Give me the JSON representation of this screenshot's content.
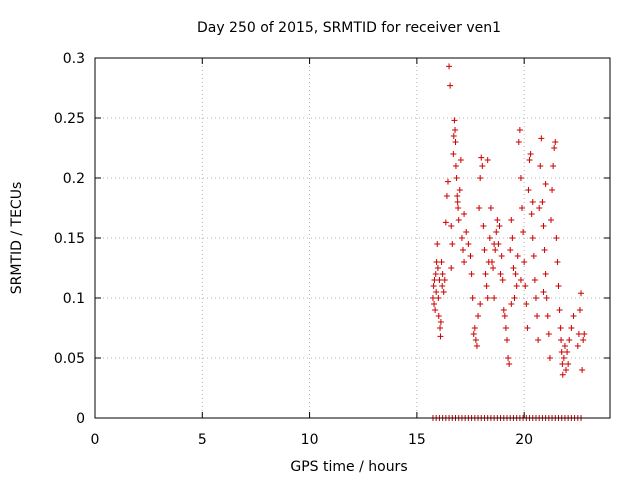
{
  "chart_data": {
    "type": "scatter",
    "title": "Day 250 of 2015, SRMTID for receiver ven1",
    "xlabel": "GPS time / hours",
    "ylabel": "SRMTID / TECUs",
    "xlim": [
      0,
      24
    ],
    "ylim": [
      0,
      0.3
    ],
    "xticks": [
      0,
      5,
      10,
      15,
      20
    ],
    "xtick_labels": [
      "0",
      "5",
      "10",
      "15",
      "20"
    ],
    "yticks": [
      0,
      0.05,
      0.1,
      0.15,
      0.2,
      0.25,
      0.3
    ],
    "ytick_labels": [
      "0",
      "0.05",
      "0.1",
      "0.15",
      "0.2",
      "0.25",
      "0.3"
    ],
    "grid": true,
    "marker": "+",
    "marker_color": "#cc0000",
    "series": [
      {
        "name": "SRMTID",
        "points": [
          [
            15.75,
            0.1
          ],
          [
            15.78,
            0.11
          ],
          [
            15.8,
            0.095
          ],
          [
            15.82,
            0.115
          ],
          [
            15.85,
            0.09
          ],
          [
            15.88,
            0.12
          ],
          [
            15.9,
            0.105
          ],
          [
            15.92,
            0.13
          ],
          [
            15.95,
            0.145
          ],
          [
            15.98,
            0.125
          ],
          [
            16.0,
            0.1
          ],
          [
            16.02,
            0.085
          ],
          [
            16.05,
            0.115
          ],
          [
            16.08,
            0.075
          ],
          [
            16.1,
            0.068
          ],
          [
            16.12,
            0.08
          ],
          [
            16.15,
            0.13
          ],
          [
            16.18,
            0.11
          ],
          [
            16.2,
            0.12
          ],
          [
            16.25,
            0.105
          ],
          [
            16.3,
            0.115
          ],
          [
            16.35,
            0.163
          ],
          [
            16.4,
            0.185
          ],
          [
            16.45,
            0.197
          ],
          [
            16.5,
            0.293
          ],
          [
            16.55,
            0.277
          ],
          [
            16.6,
            0.125
          ],
          [
            16.65,
            0.145
          ],
          [
            16.7,
            0.22
          ],
          [
            16.72,
            0.235
          ],
          [
            16.75,
            0.248
          ],
          [
            16.78,
            0.24
          ],
          [
            16.8,
            0.23
          ],
          [
            16.82,
            0.21
          ],
          [
            16.85,
            0.2
          ],
          [
            16.88,
            0.185
          ],
          [
            16.9,
            0.18
          ],
          [
            16.92,
            0.175
          ],
          [
            16.95,
            0.165
          ],
          [
            17.0,
            0.19
          ],
          [
            17.05,
            0.215
          ],
          [
            17.1,
            0.15
          ],
          [
            17.15,
            0.14
          ],
          [
            17.2,
            0.13
          ],
          [
            17.3,
            0.155
          ],
          [
            17.4,
            0.145
          ],
          [
            17.5,
            0.135
          ],
          [
            17.55,
            0.12
          ],
          [
            17.6,
            0.1
          ],
          [
            17.65,
            0.07
          ],
          [
            17.7,
            0.075
          ],
          [
            17.75,
            0.065
          ],
          [
            17.8,
            0.06
          ],
          [
            17.85,
            0.085
          ],
          [
            17.9,
            0.175
          ],
          [
            17.95,
            0.2
          ],
          [
            18.0,
            0.217
          ],
          [
            18.05,
            0.21
          ],
          [
            18.1,
            0.16
          ],
          [
            18.15,
            0.14
          ],
          [
            18.2,
            0.12
          ],
          [
            18.25,
            0.11
          ],
          [
            18.3,
            0.1
          ],
          [
            18.35,
            0.13
          ],
          [
            18.4,
            0.15
          ],
          [
            18.45,
            0.175
          ],
          [
            18.5,
            0.13
          ],
          [
            18.55,
            0.125
          ],
          [
            18.6,
            0.1
          ],
          [
            18.65,
            0.14
          ],
          [
            18.7,
            0.155
          ],
          [
            18.75,
            0.165
          ],
          [
            18.8,
            0.145
          ],
          [
            18.85,
            0.16
          ],
          [
            18.9,
            0.12
          ],
          [
            18.95,
            0.135
          ],
          [
            19.0,
            0.115
          ],
          [
            19.05,
            0.09
          ],
          [
            19.1,
            0.085
          ],
          [
            19.15,
            0.075
          ],
          [
            19.2,
            0.065
          ],
          [
            19.25,
            0.05
          ],
          [
            19.3,
            0.045
          ],
          [
            19.35,
            0.14
          ],
          [
            19.4,
            0.165
          ],
          [
            19.45,
            0.15
          ],
          [
            19.5,
            0.125
          ],
          [
            19.55,
            0.1
          ],
          [
            19.6,
            0.12
          ],
          [
            19.65,
            0.11
          ],
          [
            19.7,
            0.135
          ],
          [
            19.75,
            0.23
          ],
          [
            19.8,
            0.24
          ],
          [
            19.85,
            0.2
          ],
          [
            19.9,
            0.175
          ],
          [
            19.95,
            0.155
          ],
          [
            20.0,
            0.13
          ],
          [
            20.05,
            0.11
          ],
          [
            20.1,
            0.095
          ],
          [
            20.15,
            0.075
          ],
          [
            20.2,
            0.19
          ],
          [
            20.25,
            0.215
          ],
          [
            20.3,
            0.22
          ],
          [
            20.35,
            0.17
          ],
          [
            20.4,
            0.15
          ],
          [
            20.45,
            0.135
          ],
          [
            20.5,
            0.115
          ],
          [
            20.55,
            0.1
          ],
          [
            20.6,
            0.085
          ],
          [
            20.65,
            0.065
          ],
          [
            20.7,
            0.175
          ],
          [
            20.75,
            0.21
          ],
          [
            20.8,
            0.233
          ],
          [
            20.85,
            0.18
          ],
          [
            20.9,
            0.16
          ],
          [
            20.95,
            0.14
          ],
          [
            21.0,
            0.12
          ],
          [
            21.05,
            0.1
          ],
          [
            21.1,
            0.085
          ],
          [
            21.15,
            0.07
          ],
          [
            21.2,
            0.05
          ],
          [
            21.25,
            0.165
          ],
          [
            21.3,
            0.19
          ],
          [
            21.35,
            0.21
          ],
          [
            21.4,
            0.225
          ],
          [
            21.45,
            0.23
          ],
          [
            21.5,
            0.15
          ],
          [
            21.55,
            0.13
          ],
          [
            21.6,
            0.11
          ],
          [
            21.65,
            0.09
          ],
          [
            21.7,
            0.075
          ],
          [
            21.72,
            0.065
          ],
          [
            21.75,
            0.055
          ],
          [
            21.78,
            0.045
          ],
          [
            21.8,
            0.036
          ],
          [
            21.85,
            0.05
          ],
          [
            21.9,
            0.06
          ],
          [
            21.95,
            0.04
          ],
          [
            22.0,
            0.055
          ],
          [
            22.05,
            0.045
          ],
          [
            22.1,
            0.065
          ],
          [
            22.2,
            0.075
          ],
          [
            22.3,
            0.085
          ],
          [
            22.5,
            0.06
          ],
          [
            22.55,
            0.07
          ],
          [
            22.6,
            0.09
          ],
          [
            22.65,
            0.104
          ],
          [
            22.7,
            0.04
          ],
          [
            22.75,
            0.065
          ],
          [
            22.8,
            0.07
          ],
          [
            16.6,
            0.16
          ],
          [
            17.2,
            0.17
          ],
          [
            18.3,
            0.215
          ],
          [
            19.85,
            0.115
          ],
          [
            20.4,
            0.18
          ],
          [
            21.0,
            0.195
          ],
          [
            20.9,
            0.105
          ],
          [
            19.4,
            0.095
          ],
          [
            18.6,
            0.145
          ],
          [
            17.95,
            0.095
          ]
        ]
      },
      {
        "name": "zero-baseline",
        "points": [
          [
            15.75,
            0
          ],
          [
            15.9,
            0
          ],
          [
            16.05,
            0
          ],
          [
            16.2,
            0
          ],
          [
            16.35,
            0
          ],
          [
            16.5,
            0
          ],
          [
            16.65,
            0
          ],
          [
            16.8,
            0
          ],
          [
            16.95,
            0
          ],
          [
            17.1,
            0
          ],
          [
            17.25,
            0
          ],
          [
            17.4,
            0
          ],
          [
            17.55,
            0
          ],
          [
            17.7,
            0
          ],
          [
            17.85,
            0
          ],
          [
            18.0,
            0
          ],
          [
            18.15,
            0
          ],
          [
            18.3,
            0
          ],
          [
            18.45,
            0
          ],
          [
            18.6,
            0
          ],
          [
            18.75,
            0
          ],
          [
            18.9,
            0
          ],
          [
            19.05,
            0
          ],
          [
            19.2,
            0
          ],
          [
            19.35,
            0
          ],
          [
            19.5,
            0
          ],
          [
            19.65,
            0
          ],
          [
            19.8,
            0
          ],
          [
            19.95,
            0
          ],
          [
            20.1,
            0
          ],
          [
            20.25,
            0
          ],
          [
            20.4,
            0
          ],
          [
            20.55,
            0
          ],
          [
            20.7,
            0
          ],
          [
            20.85,
            0
          ],
          [
            21.0,
            0
          ],
          [
            21.15,
            0
          ],
          [
            21.3,
            0
          ],
          [
            21.45,
            0
          ],
          [
            21.6,
            0
          ],
          [
            21.75,
            0
          ],
          [
            21.9,
            0
          ],
          [
            22.05,
            0
          ],
          [
            22.2,
            0
          ],
          [
            22.35,
            0
          ],
          [
            22.5,
            0
          ],
          [
            22.65,
            0
          ]
        ]
      }
    ]
  }
}
